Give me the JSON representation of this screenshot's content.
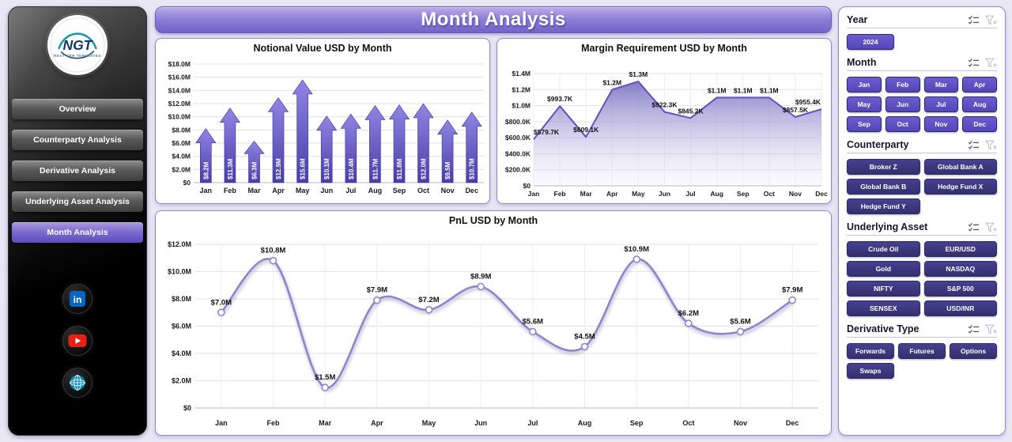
{
  "page": {
    "background": "#e9e7f4"
  },
  "header": {
    "title": "Month Analysis"
  },
  "sidebar": {
    "logo": {
      "brand": "NGT",
      "tagline": "NEXT GEN TEMPLATES"
    },
    "nav": [
      {
        "label": "Overview",
        "active": false
      },
      {
        "label": "Counterparty Analysis",
        "active": false
      },
      {
        "label": "Derivative Analysis",
        "active": false
      },
      {
        "label": "Underlying Asset Analysis",
        "active": false
      },
      {
        "label": "Month Analysis",
        "active": true
      }
    ],
    "social": [
      {
        "name": "linkedin"
      },
      {
        "name": "youtube"
      },
      {
        "name": "website"
      }
    ]
  },
  "filters": [
    {
      "title": "Year",
      "style": "primary",
      "columns": 3,
      "options": [
        "2024"
      ]
    },
    {
      "title": "Month",
      "style": "primary",
      "columns": 4,
      "options": [
        "Jan",
        "Feb",
        "Mar",
        "Apr",
        "May",
        "Jun",
        "Jul",
        "Aug",
        "Sep",
        "Oct",
        "Nov",
        "Dec"
      ]
    },
    {
      "title": "Counterparty",
      "style": "dark",
      "columns": 2,
      "options": [
        "Broker Z",
        "Global Bank A",
        "Global Bank B",
        "Hedge Fund X",
        "Hedge Fund Y"
      ]
    },
    {
      "title": "Underlying Asset",
      "style": "dark",
      "columns": 2,
      "options": [
        "Crude Oil",
        "EUR/USD",
        "Gold",
        "NASDAQ",
        "NIFTY",
        "S&P 500",
        "SENSEX",
        "USD/INR"
      ]
    },
    {
      "title": "Derivative Type",
      "style": "dark",
      "columns": 3,
      "options": [
        "Forwards",
        "Futures",
        "Options",
        "Swaps"
      ]
    }
  ],
  "colors": {
    "accent_primary": "#5b4fc6",
    "accent_dark": "#3d3989",
    "banner_purple": "#8d7ed8",
    "bar_gradient_top": "#9085e3",
    "bar_gradient_bottom": "#4a3dab",
    "area_line": "#5f52bd",
    "pnl_line": "#8d86cb"
  },
  "chart_data": [
    {
      "id": "notional",
      "type": "bar",
      "bar_shape": "up-arrow",
      "title": "Notional Value USD by Month",
      "categories": [
        "Jan",
        "Feb",
        "Mar",
        "Apr",
        "May",
        "Jun",
        "Jul",
        "Aug",
        "Sep",
        "Oct",
        "Nov",
        "Dec"
      ],
      "values": [
        8.2,
        11.3,
        6.3,
        12.9,
        15.6,
        10.1,
        10.4,
        11.7,
        11.8,
        12.0,
        9.5,
        10.7
      ],
      "labels": [
        "$8.2M",
        "$11.3M",
        "$6.3M",
        "$12.9M",
        "$15.6M",
        "$10.1M",
        "$10.4M",
        "$11.7M",
        "$11.8M",
        "$12.0M",
        "$9.5M",
        "$10.7M"
      ],
      "unit": "USD millions",
      "ylim": [
        0,
        18
      ],
      "yticks": [
        0,
        2,
        4,
        6,
        8,
        10,
        12,
        14,
        16,
        18
      ],
      "ytick_labels": [
        "$0",
        "$2.0M",
        "$4.0M",
        "$6.0M",
        "$8.0M",
        "$10.0M",
        "$12.0M",
        "$14.0M",
        "$16.0M",
        "$18.0M"
      ],
      "grid": true
    },
    {
      "id": "margin",
      "type": "area",
      "title": "Margin Requirement USD by Month",
      "categories": [
        "Jan",
        "Feb",
        "Mar",
        "Apr",
        "May",
        "Jun",
        "Jul",
        "Aug",
        "Sep",
        "Oct",
        "Nov",
        "Dec"
      ],
      "values": [
        579.7,
        993.7,
        609.1,
        1200,
        1300,
        922.3,
        845.2,
        1100,
        1100,
        1100,
        857.5,
        955.4
      ],
      "labels": [
        "$579.7K",
        "$993.7K",
        "$609.1K",
        "$1.2M",
        "$1.3M",
        "$922.3K",
        "$845.2K",
        "$1.1M",
        "$1.1M",
        "$1.1M",
        "$857.5K",
        "$955.4K"
      ],
      "unit": "USD thousands",
      "ylim": [
        0,
        1400
      ],
      "yticks": [
        0,
        200,
        400,
        600,
        800,
        1000,
        1200,
        1400
      ],
      "ytick_labels": [
        "$0",
        "$200.0K",
        "$400.0K",
        "$600.0K",
        "$800.0K",
        "$1.0M",
        "$1.2M",
        "$1.4M"
      ],
      "grid": true
    },
    {
      "id": "pnl",
      "type": "line",
      "title": "PnL USD by Month",
      "categories": [
        "Jan",
        "Feb",
        "Mar",
        "Apr",
        "May",
        "Jun",
        "Jul",
        "Aug",
        "Sep",
        "Oct",
        "Nov",
        "Dec"
      ],
      "values": [
        7.0,
        10.8,
        1.5,
        7.9,
        7.2,
        8.9,
        5.6,
        4.5,
        10.9,
        6.2,
        5.6,
        7.9
      ],
      "labels": [
        "$7.0M",
        "$10.8M",
        "$1.5M",
        "$7.9M",
        "$7.2M",
        "$8.9M",
        "$5.6M",
        "$4.5M",
        "$10.9M",
        "$6.2M",
        "$5.6M",
        "$7.9M"
      ],
      "unit": "USD millions",
      "ylim": [
        0,
        12
      ],
      "yticks": [
        0,
        2,
        4,
        6,
        8,
        10,
        12
      ],
      "ytick_labels": [
        "$0",
        "$2.0M",
        "$4.0M",
        "$6.0M",
        "$8.0M",
        "$10.0M",
        "$12.0M"
      ],
      "grid": true
    }
  ]
}
